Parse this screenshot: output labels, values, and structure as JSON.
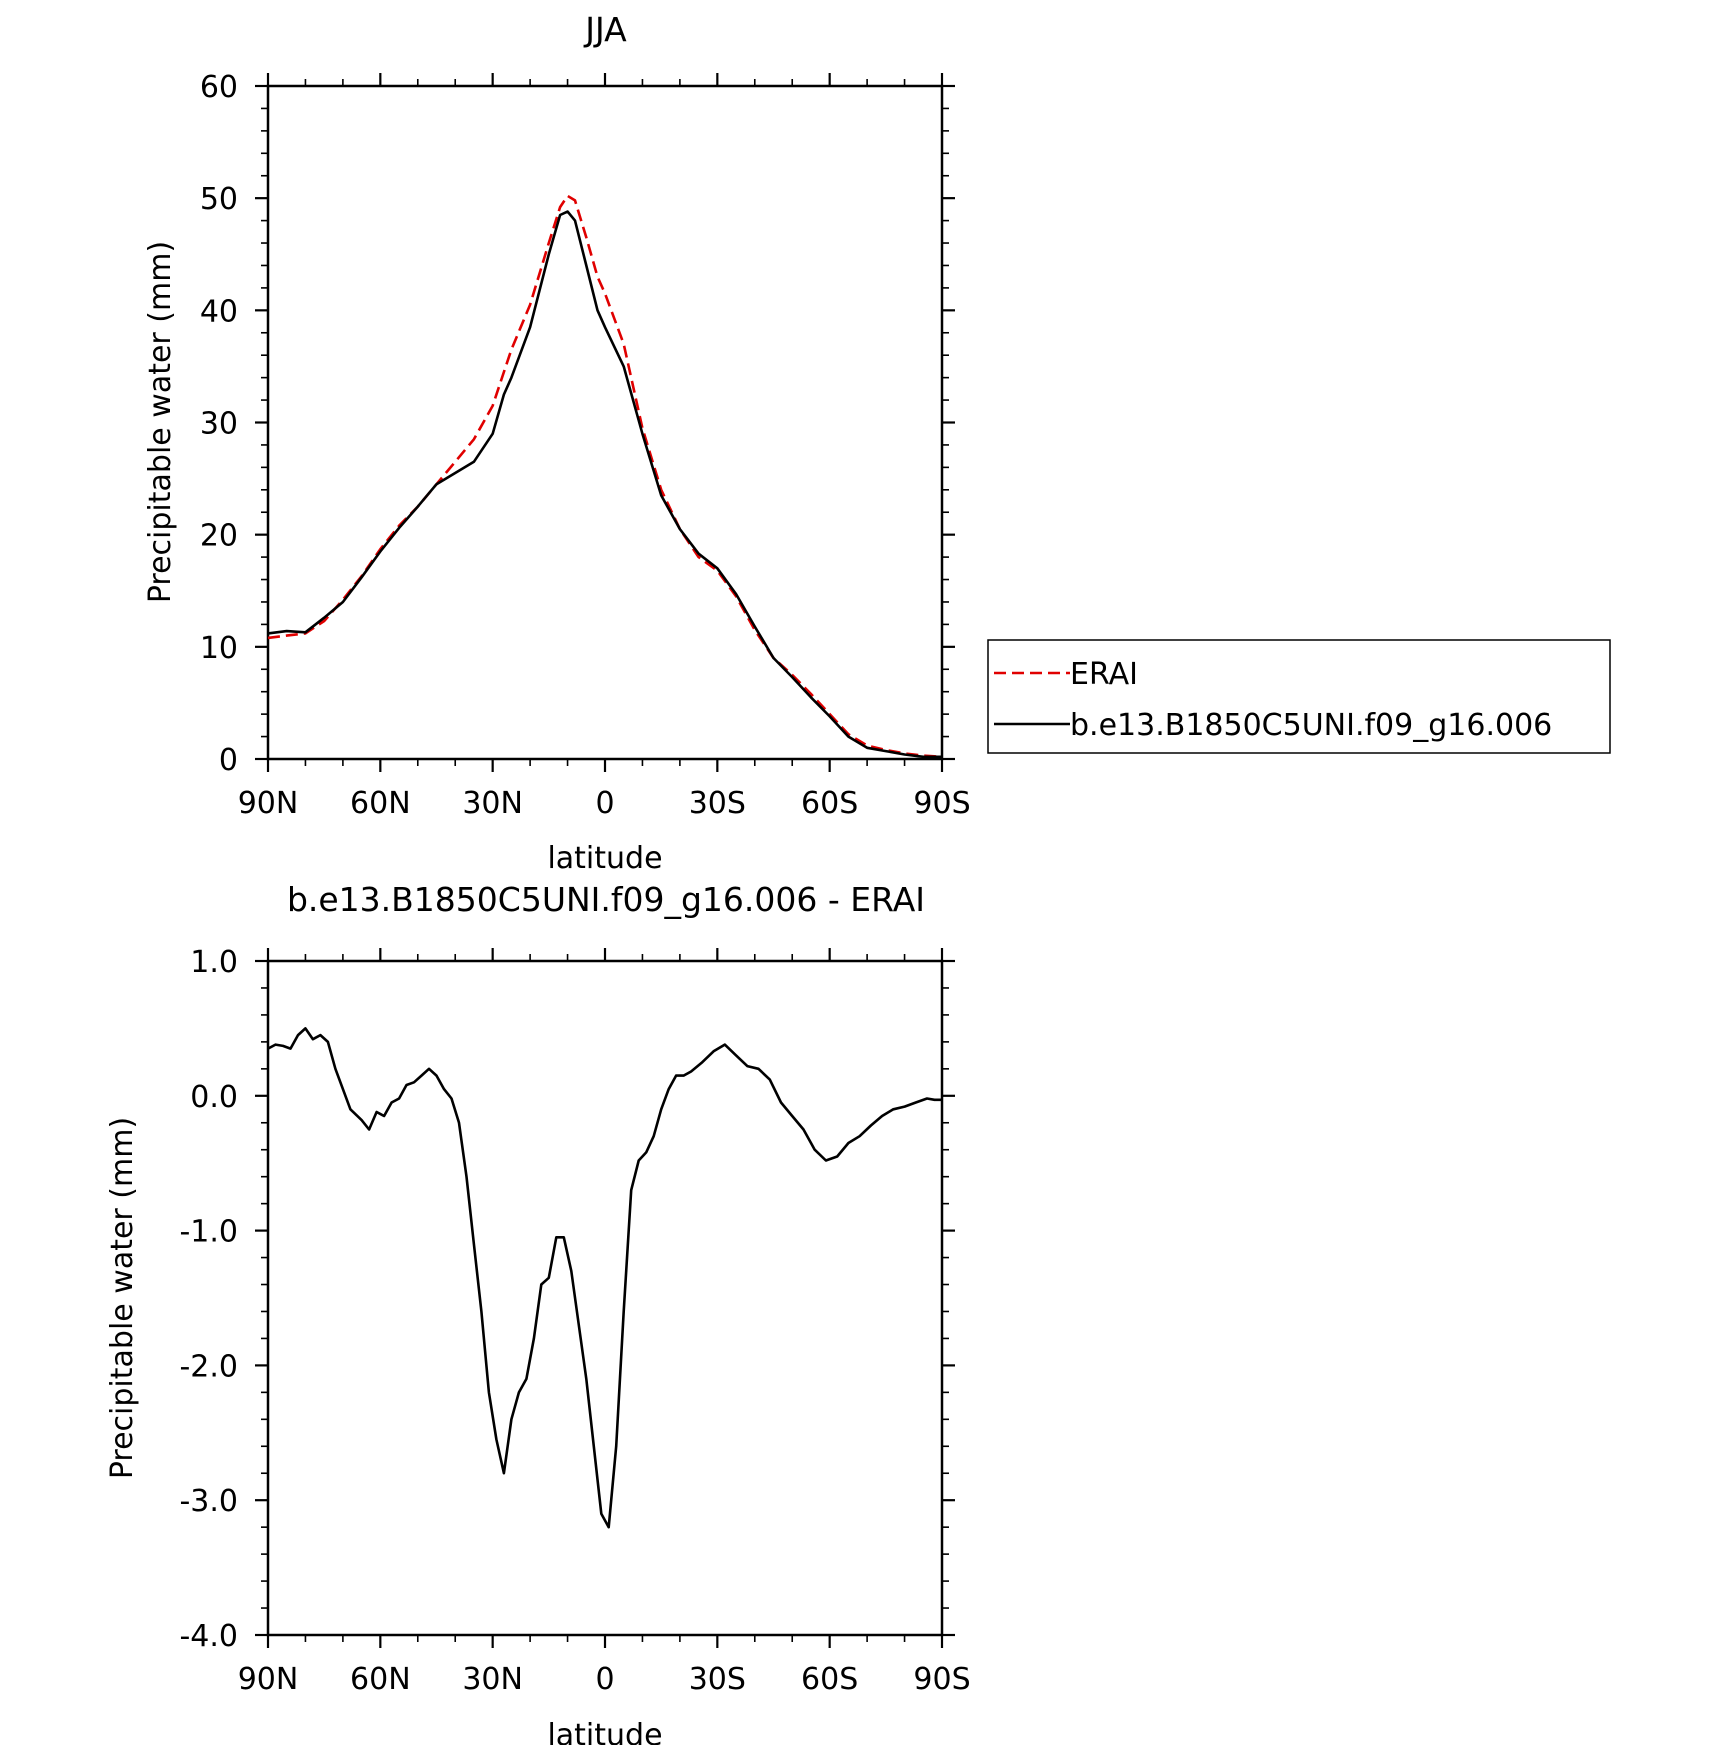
{
  "chart_data": [
    {
      "type": "line",
      "title": "JJA",
      "xlabel": "latitude",
      "ylabel": "Precipitable water (mm)",
      "xlim": [
        90,
        -90
      ],
      "ylim": [
        0,
        60
      ],
      "xticks": [
        90,
        60,
        30,
        0,
        -30,
        -60,
        -90
      ],
      "xtick_labels": [
        "90N",
        "60N",
        "30N",
        "0",
        "30S",
        "60S",
        "90S"
      ],
      "yticks": [
        0,
        10,
        20,
        30,
        40,
        50,
        60
      ],
      "ytick_labels": [
        "0",
        "10",
        "20",
        "30",
        "40",
        "50",
        "60"
      ],
      "legend_position": "right",
      "series": [
        {
          "name": "ERAI",
          "color": "#e00000",
          "style": "dashed",
          "x": [
            90,
            85,
            80,
            75,
            70,
            65,
            60,
            55,
            50,
            45,
            40,
            35,
            30,
            27,
            25,
            20,
            15,
            12,
            10,
            8,
            5,
            2,
            0,
            -5,
            -10,
            -15,
            -20,
            -25,
            -30,
            -35,
            -40,
            -45,
            -50,
            -55,
            -60,
            -65,
            -70,
            -75,
            -80,
            -85,
            -90
          ],
          "y": [
            10.8,
            11.0,
            11.2,
            12.3,
            14.2,
            16.3,
            18.7,
            20.8,
            22.5,
            24.5,
            26.5,
            28.5,
            31.5,
            34.5,
            36.5,
            40.5,
            46.0,
            49.2,
            50.2,
            49.8,
            46.5,
            43.0,
            41.5,
            37.0,
            29.5,
            24.0,
            20.5,
            18.0,
            16.8,
            14.5,
            11.5,
            9.0,
            7.5,
            5.8,
            4.0,
            2.2,
            1.2,
            0.8,
            0.5,
            0.3,
            0.2
          ]
        },
        {
          "name": "b.e13.B1850C5UNI.f09_g16.006",
          "color": "#000000",
          "style": "solid",
          "x": [
            90,
            85,
            80,
            75,
            70,
            65,
            60,
            55,
            50,
            45,
            40,
            35,
            30,
            27,
            25,
            20,
            15,
            12,
            10,
            8,
            5,
            2,
            0,
            -5,
            -10,
            -15,
            -20,
            -25,
            -30,
            -35,
            -40,
            -45,
            -50,
            -55,
            -60,
            -65,
            -70,
            -75,
            -80,
            -85,
            -90
          ],
          "y": [
            11.2,
            11.4,
            11.3,
            12.6,
            14.0,
            16.2,
            18.5,
            20.6,
            22.5,
            24.5,
            25.5,
            26.5,
            29.0,
            32.5,
            34.0,
            38.5,
            45.0,
            48.5,
            48.8,
            48.0,
            44.0,
            40.0,
            38.5,
            35.0,
            29.0,
            23.5,
            20.5,
            18.3,
            17.0,
            14.7,
            11.8,
            9.0,
            7.3,
            5.5,
            3.8,
            2.0,
            1.0,
            0.7,
            0.4,
            0.2,
            0.2
          ]
        }
      ]
    },
    {
      "type": "line",
      "title": "b.e13.B1850C5UNI.f09_g16.006 - ERAI",
      "xlabel": "latitude",
      "ylabel": "Precipitable water (mm)",
      "xlim": [
        90,
        -90
      ],
      "ylim": [
        -4.0,
        1.0
      ],
      "xticks": [
        90,
        60,
        30,
        0,
        -30,
        -60,
        -90
      ],
      "xtick_labels": [
        "90N",
        "60N",
        "30N",
        "0",
        "30S",
        "60S",
        "90S"
      ],
      "yticks": [
        1.0,
        0.0,
        -1.0,
        -2.0,
        -3.0,
        -4.0
      ],
      "ytick_labels": [
        "1.0",
        "0.0",
        "-1.0",
        "-2.0",
        "-3.0",
        "-4.0"
      ],
      "series": [
        {
          "color": "#000000",
          "style": "solid",
          "x": [
            90,
            88,
            86,
            84,
            82,
            80,
            78,
            76,
            74,
            72,
            70,
            68,
            65,
            63,
            61,
            59,
            57,
            55,
            53,
            51,
            49,
            47,
            45,
            43,
            41,
            39,
            37,
            35,
            33,
            31,
            29,
            27,
            25,
            23,
            21,
            19,
            17,
            15,
            13,
            11,
            9,
            7,
            5,
            3,
            1,
            -1,
            -3,
            -5,
            -7,
            -9,
            -11,
            -13,
            -15,
            -17,
            -19,
            -21,
            -23,
            -26,
            -29,
            -32,
            -35,
            -38,
            -41,
            -44,
            -47,
            -50,
            -53,
            -56,
            -59,
            -62,
            -65,
            -68,
            -71,
            -74,
            -77,
            -80,
            -83,
            -86,
            -88,
            -90
          ],
          "y": [
            0.35,
            0.38,
            0.37,
            0.35,
            0.45,
            0.5,
            0.42,
            0.45,
            0.4,
            0.2,
            0.05,
            -0.1,
            -0.18,
            -0.25,
            -0.12,
            -0.15,
            -0.05,
            -0.02,
            0.08,
            0.1,
            0.15,
            0.2,
            0.15,
            0.05,
            -0.02,
            -0.2,
            -0.6,
            -1.1,
            -1.6,
            -2.2,
            -2.55,
            -2.8,
            -2.4,
            -2.2,
            -2.1,
            -1.8,
            -1.4,
            -1.35,
            -1.05,
            -1.05,
            -1.3,
            -1.7,
            -2.1,
            -2.6,
            -3.1,
            -3.2,
            -2.6,
            -1.6,
            -0.7,
            -0.48,
            -0.42,
            -0.3,
            -0.1,
            0.05,
            0.15,
            0.15,
            0.18,
            0.25,
            0.33,
            0.38,
            0.3,
            0.22,
            0.2,
            0.12,
            -0.05,
            -0.15,
            -0.25,
            -0.4,
            -0.48,
            -0.45,
            -0.35,
            -0.3,
            -0.22,
            -0.15,
            -0.1,
            -0.08,
            -0.05,
            -0.02,
            -0.03,
            -0.03
          ]
        }
      ]
    }
  ]
}
